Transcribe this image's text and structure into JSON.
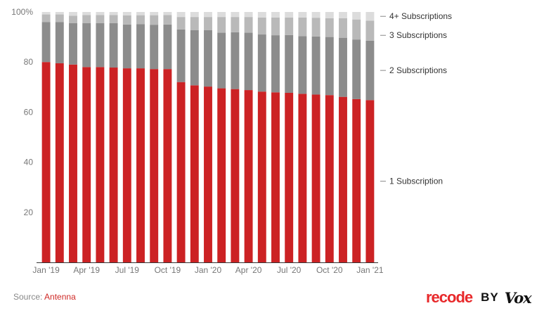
{
  "chart_data": {
    "type": "bar",
    "stacked": true,
    "categories": [
      "Jan '19",
      "Feb '19",
      "Mar '19",
      "Apr '19",
      "May '19",
      "Jun '19",
      "Jul '19",
      "Aug '19",
      "Sep '19",
      "Oct '19",
      "Nov '19",
      "Dec '19",
      "Jan '20",
      "Feb '20",
      "Mar '20",
      "Apr '20",
      "May '20",
      "Jun '20",
      "Jul '20",
      "Aug '20",
      "Sep '20",
      "Oct '20",
      "Nov '20",
      "Dec '20",
      "Jan '21"
    ],
    "x_tick_labels": [
      "Jan '19",
      "Apr '19",
      "Jul '19",
      "Oct '19",
      "Jan '20",
      "Apr '20",
      "Jul '20",
      "Oct '20",
      "Jan '21"
    ],
    "x_tick_indices": [
      0,
      3,
      6,
      9,
      12,
      15,
      18,
      21,
      24
    ],
    "y_ticks": [
      {
        "value": 0,
        "label": ""
      },
      {
        "value": 20,
        "label": "20"
      },
      {
        "value": 40,
        "label": "40"
      },
      {
        "value": 60,
        "label": "60"
      },
      {
        "value": 80,
        "label": "80"
      },
      {
        "value": 100,
        "label": "100%"
      }
    ],
    "ylim": [
      0,
      100
    ],
    "series": [
      {
        "name": "1 Subscription",
        "color": "#cc2224",
        "values": [
          80,
          79.5,
          79,
          78,
          78,
          77.8,
          77.5,
          77.5,
          77.2,
          77.2,
          72,
          70.7,
          70.2,
          69.5,
          69.2,
          68.8,
          68.2,
          67.9,
          67.7,
          67.3,
          67,
          66.8,
          66.1,
          65.2,
          64.8
        ]
      },
      {
        "name": "2 Subscriptions",
        "color": "#8c8c8c",
        "values": [
          16,
          16.5,
          16.5,
          17.5,
          17.5,
          17.7,
          17.5,
          17.6,
          17.7,
          17.8,
          21,
          22,
          22.5,
          22.2,
          22.7,
          22.9,
          22.8,
          22.8,
          23.1,
          23,
          23.2,
          23.2,
          23.6,
          23.8,
          23.7
        ]
      },
      {
        "name": "3 Subscriptions",
        "color": "#b9b9b9",
        "values": [
          3,
          3,
          3,
          3.3,
          3.3,
          3.3,
          3.6,
          3.6,
          3.8,
          3.8,
          5,
          5.3,
          5.3,
          6.3,
          6.1,
          6.3,
          6.8,
          7.1,
          7,
          7.5,
          7.5,
          7.5,
          7.8,
          8,
          8
        ]
      },
      {
        "name": "4+ Subscriptions",
        "color": "#dcdcdc",
        "values": [
          1,
          1,
          1.5,
          1.2,
          1.2,
          1.2,
          1.4,
          1.3,
          1.3,
          1.2,
          2,
          2,
          2,
          2,
          2,
          2,
          2.2,
          2.2,
          2.2,
          2.2,
          2.3,
          2.5,
          2.5,
          3,
          3.5
        ]
      }
    ],
    "legend_placement": "right (labels beside last bar)",
    "grid": false
  },
  "source": {
    "prefix": "Source: ",
    "name": "Antenna"
  },
  "brand": {
    "name": "recode",
    "by": "BY",
    "publisher": "Vox"
  }
}
